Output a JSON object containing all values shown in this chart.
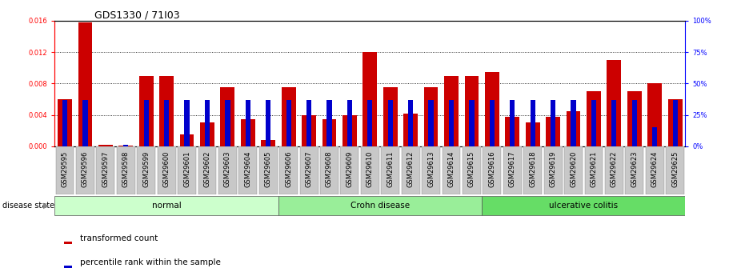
{
  "title": "GDS1330 / 71I03",
  "samples": [
    "GSM29595",
    "GSM29596",
    "GSM29597",
    "GSM29598",
    "GSM29599",
    "GSM29600",
    "GSM29601",
    "GSM29602",
    "GSM29603",
    "GSM29604",
    "GSM29605",
    "GSM29606",
    "GSM29607",
    "GSM29608",
    "GSM29609",
    "GSM29610",
    "GSM29611",
    "GSM29612",
    "GSM29613",
    "GSM29614",
    "GSM29615",
    "GSM29616",
    "GSM29617",
    "GSM29618",
    "GSM29619",
    "GSM29620",
    "GSM29621",
    "GSM29622",
    "GSM29623",
    "GSM29624",
    "GSM29625"
  ],
  "transformed_count": [
    0.006,
    0.0158,
    0.00015,
    0.0001,
    0.009,
    0.009,
    0.0015,
    0.003,
    0.0075,
    0.0035,
    0.0008,
    0.0075,
    0.004,
    0.0035,
    0.004,
    0.012,
    0.0075,
    0.0042,
    0.0075,
    0.009,
    0.009,
    0.0095,
    0.0038,
    0.003,
    0.0038,
    0.0045,
    0.007,
    0.011,
    0.007,
    0.008,
    0.006
  ],
  "percentile_rank_pct": [
    37,
    37,
    0,
    1,
    37,
    37,
    37,
    37,
    37,
    37,
    37,
    37,
    37,
    37,
    37,
    37,
    37,
    37,
    37,
    37,
    37,
    37,
    37,
    37,
    37,
    37,
    37,
    37,
    37,
    15,
    37
  ],
  "groups": [
    {
      "label": "normal",
      "start": 0,
      "end": 10,
      "color": "#ccffcc"
    },
    {
      "label": "Crohn disease",
      "start": 11,
      "end": 20,
      "color": "#99ee99"
    },
    {
      "label": "ulcerative colitis",
      "start": 21,
      "end": 30,
      "color": "#66dd66"
    }
  ],
  "ylim_left": [
    0,
    0.016
  ],
  "ylim_right": [
    0,
    100
  ],
  "yticks_left": [
    0,
    0.004,
    0.008,
    0.012,
    0.016
  ],
  "yticks_right": [
    0,
    25,
    50,
    75,
    100
  ],
  "bar_color_red": "#cc0000",
  "bar_color_blue": "#0000cc",
  "bar_width": 0.7,
  "bg_color": "#ffffff",
  "disease_state_label": "disease state",
  "legend_red": "transformed count",
  "legend_blue": "percentile rank within the sample",
  "title_fontsize": 9,
  "tick_fontsize": 6
}
